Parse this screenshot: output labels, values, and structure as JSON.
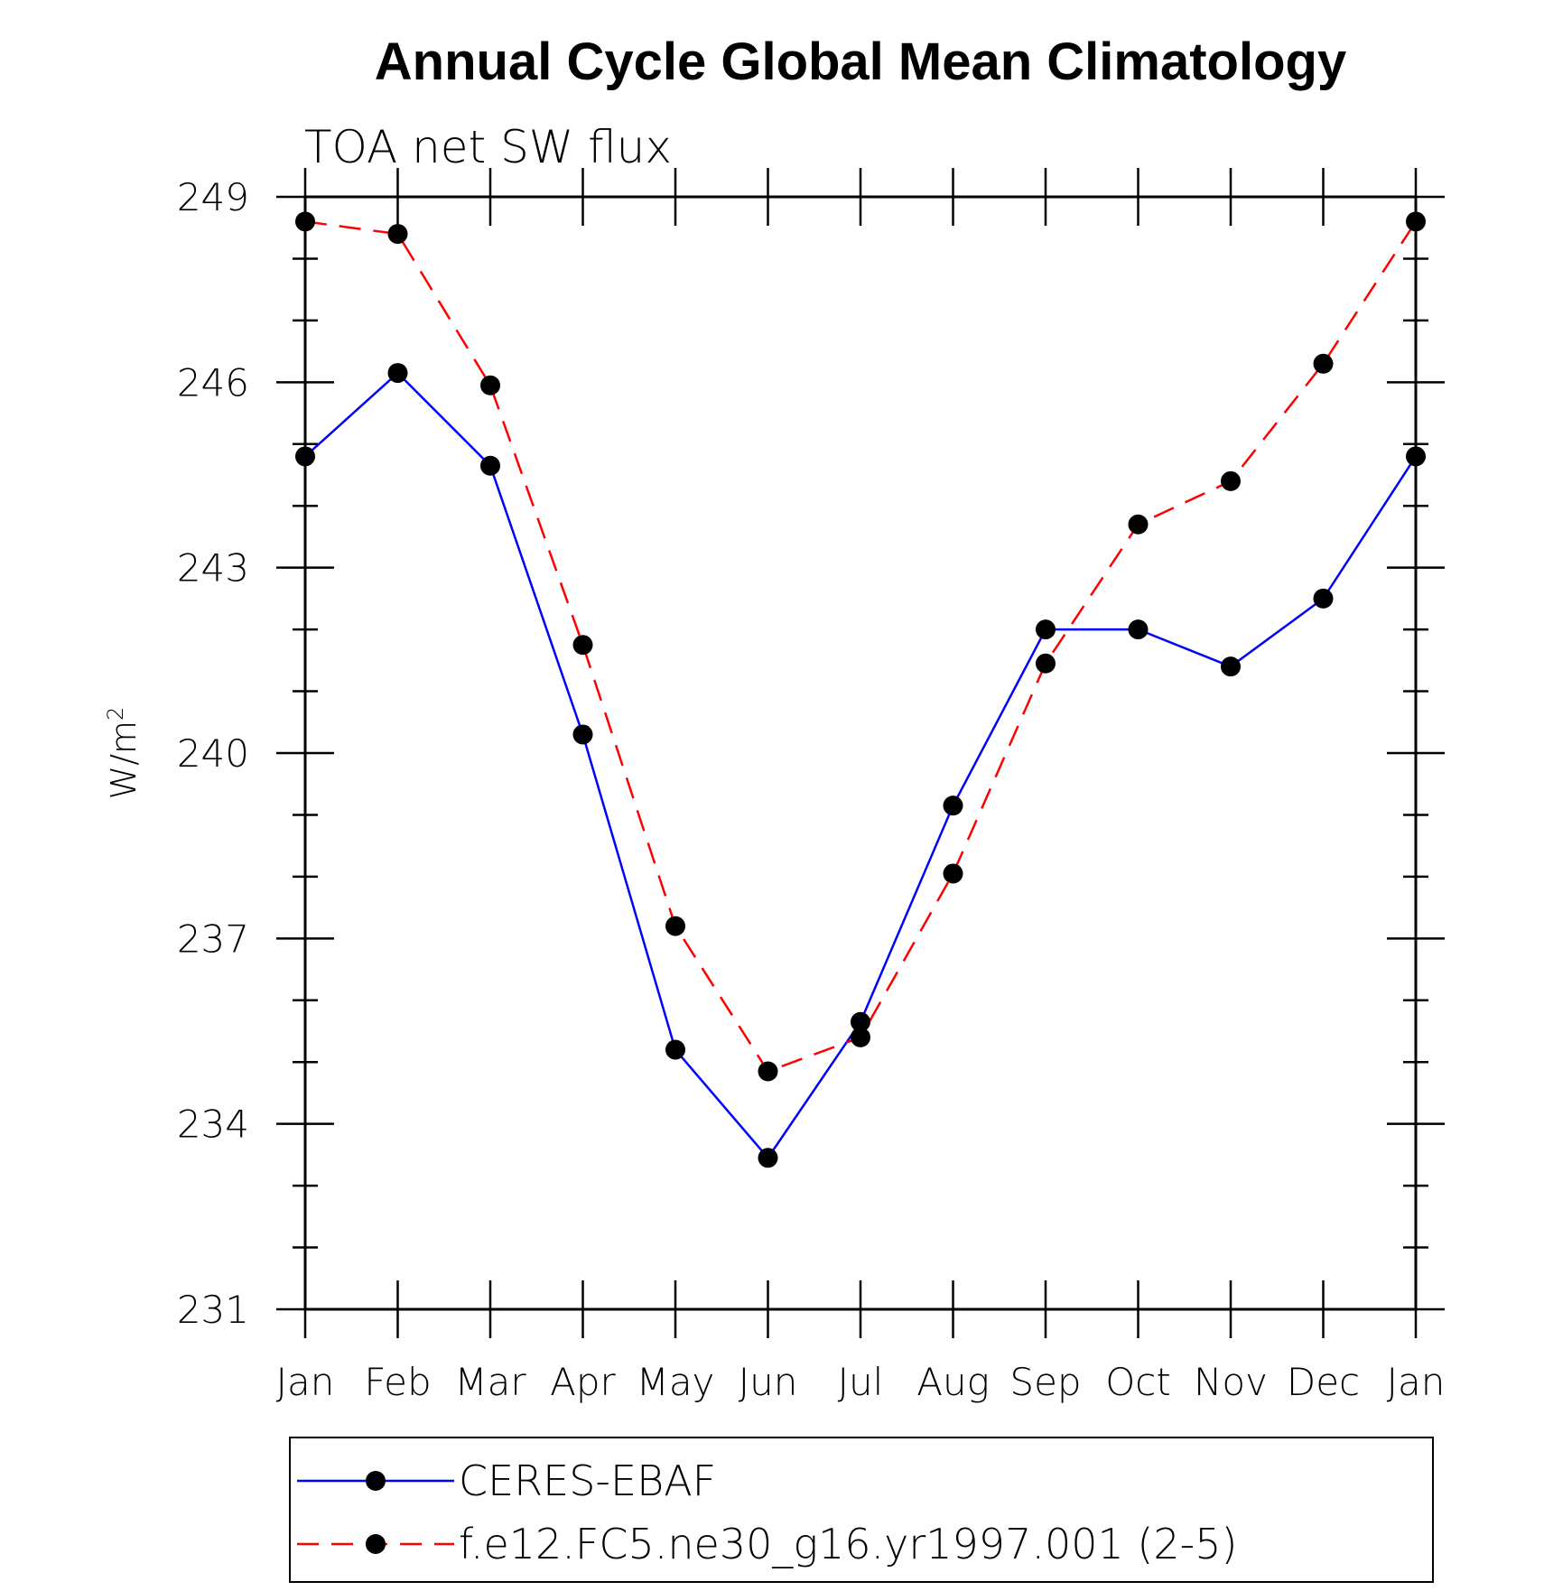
{
  "chart_data": {
    "type": "line",
    "title": "Annual Cycle Global Mean Climatology",
    "subtitle": "TOA net SW flux",
    "ylabel": "W/m",
    "ylabel_superscript": "2",
    "xlabel": "",
    "categories": [
      "Jan",
      "Feb",
      "Mar",
      "Apr",
      "May",
      "Jun",
      "Jul",
      "Aug",
      "Sep",
      "Oct",
      "Nov",
      "Dec",
      "Jan"
    ],
    "ylim": [
      231,
      249
    ],
    "yticks": [
      "249",
      "246",
      "243",
      "240",
      "237",
      "234",
      "231"
    ],
    "series": [
      {
        "name": "CERES-EBAF",
        "color": "#0000ff",
        "line_style": "solid",
        "marker": "filled-circle",
        "values": [
          244.8,
          246.15,
          244.65,
          240.3,
          235.2,
          233.45,
          235.65,
          239.15,
          242.0,
          242.0,
          241.4,
          242.5,
          244.8
        ]
      },
      {
        "name": "f.e12.FC5.ne30_g16.yr1997.001 (2-5)",
        "color": "#ff0000",
        "line_style": "dashed",
        "marker": "filled-circle",
        "values": [
          248.6,
          248.4,
          245.95,
          241.75,
          237.2,
          234.85,
          235.4,
          238.05,
          241.45,
          243.7,
          244.4,
          246.3,
          248.6
        ]
      }
    ],
    "grid": false,
    "legend_position": "bottom"
  }
}
